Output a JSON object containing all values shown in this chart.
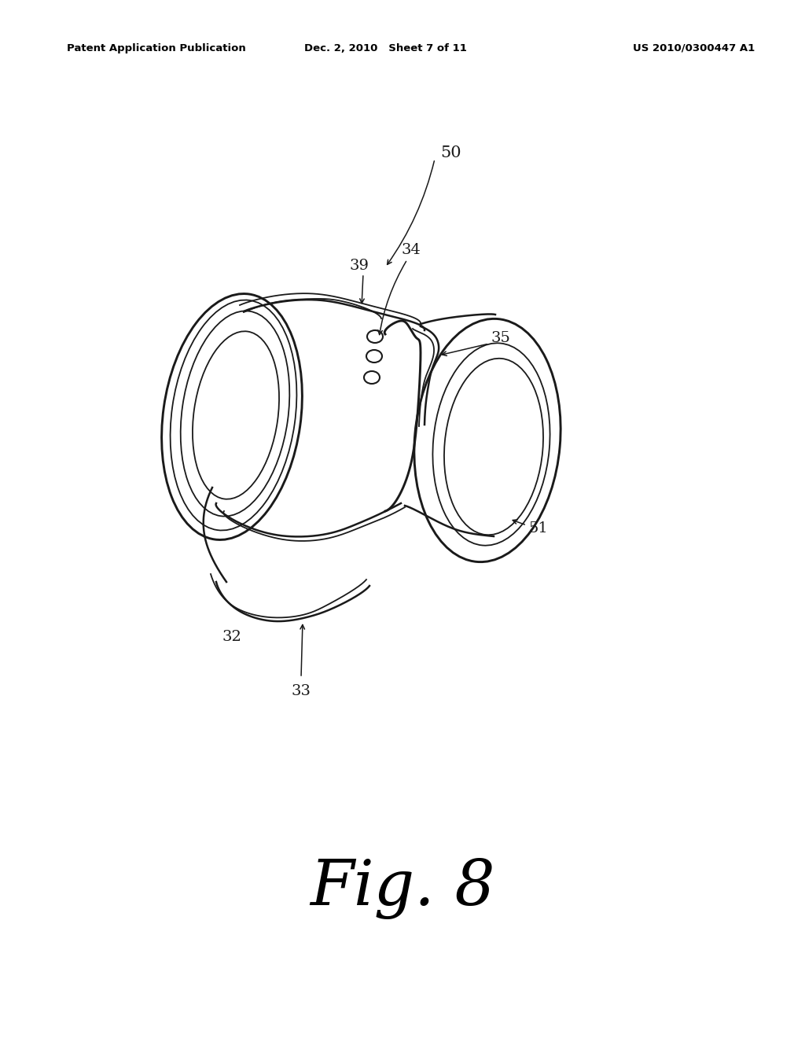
{
  "background_color": "#ffffff",
  "header_left": "Patent Application Publication",
  "header_center": "Dec. 2, 2010   Sheet 7 of 11",
  "header_right": "US 2010/0300447 A1",
  "figure_label": "Fig. 8",
  "line_color": "#1a1a1a",
  "lw_main": 1.8,
  "lw_inner": 1.3,
  "label_fontsize": 14,
  "header_fontsize": 9.5,
  "fig_label_fontsize": 58
}
